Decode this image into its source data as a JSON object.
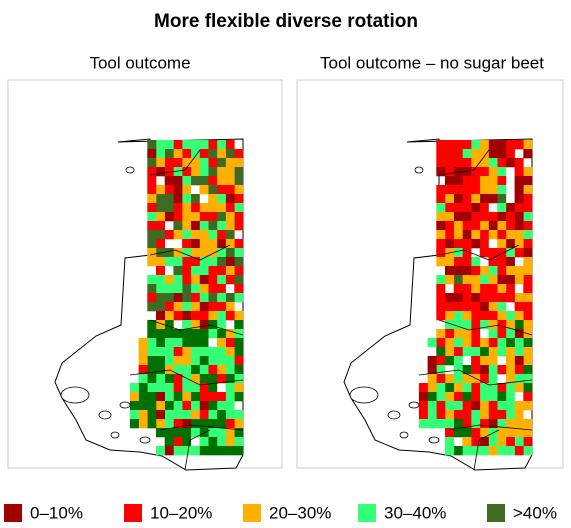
{
  "title": "More flexible diverse rotation",
  "panels": [
    {
      "title": "Tool outcome"
    },
    {
      "title": "Tool outcome – no sugar beet"
    }
  ],
  "legend": [
    {
      "label": "0–10%",
      "color": "#a00000"
    },
    {
      "label": "10–20%",
      "color": "#ff0000"
    },
    {
      "label": "20–30%",
      "color": "#ffb000"
    },
    {
      "label": "30–40%",
      "color": "#33ff77"
    },
    {
      "label": ">40%",
      "color": "#3d6b22"
    }
  ]
}
